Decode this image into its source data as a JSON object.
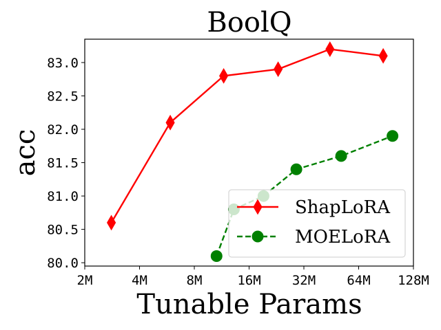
{
  "chart_data": {
    "type": "line",
    "title": "BoolQ",
    "xlabel": "Tunable Params",
    "ylabel": "acc",
    "x_scale": "log2",
    "x_ticks": [
      2,
      4,
      8,
      16,
      32,
      64,
      128
    ],
    "x_tick_labels": [
      "2M",
      "4M",
      "8M",
      "16M",
      "32M",
      "64M",
      "128M"
    ],
    "xlim": [
      2,
      128
    ],
    "y_ticks": [
      80.0,
      80.5,
      81.0,
      81.5,
      82.0,
      82.5,
      83.0
    ],
    "y_tick_labels": [
      "80.0",
      "80.5",
      "81.0",
      "81.5",
      "82.0",
      "82.5",
      "83.0"
    ],
    "ylim": [
      79.95,
      83.35
    ],
    "grid": false,
    "legend_position": "lower-right",
    "series": [
      {
        "name": "ShapLoRA",
        "color": "#ff0000",
        "line_style": "solid",
        "marker": "thin-diamond",
        "x": [
          2.8,
          5.9,
          11.6,
          23.1,
          44.5,
          87.3
        ],
        "values": [
          80.6,
          82.1,
          82.8,
          82.9,
          83.2,
          83.1
        ]
      },
      {
        "name": "MOELoRA",
        "color": "#008000",
        "line_style": "dashed",
        "marker": "circle",
        "x": [
          10.6,
          13.2,
          19.2,
          29.1,
          51.3,
          98.2
        ],
        "values": [
          80.1,
          80.8,
          81.0,
          81.4,
          81.6,
          81.9
        ]
      }
    ]
  }
}
